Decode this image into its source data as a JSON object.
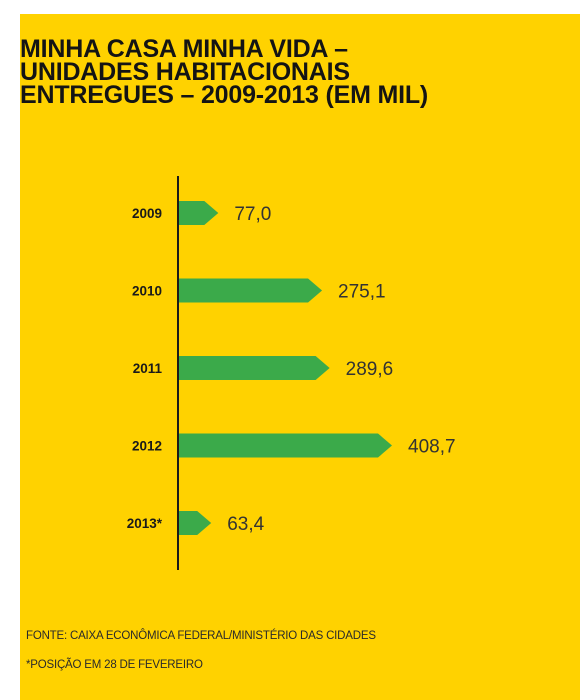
{
  "title_lines": [
    "MINHA CASA MINHA VIDA –",
    "UNIDADES HABITACIONAIS",
    "ENTREGUES – 2009-2013 (EM MIL)"
  ],
  "source": "FONTE: CAIXA ECONÔMICA FEDERAL/MINISTÉRIO DAS CIDADES",
  "footnote": "*POSIÇÃO EM 28 DE FEVEREIRO",
  "colors": {
    "background": "#FFD200",
    "bar": "#3BAA4A",
    "text": "#1a1a1a"
  },
  "chart_data": {
    "type": "bar",
    "orientation": "horizontal",
    "title": "MINHA CASA MINHA VIDA – UNIDADES HABITACIONAIS ENTREGUES – 2009-2013 (EM MIL)",
    "categories": [
      "2009",
      "2010",
      "2011",
      "2012",
      "2013*"
    ],
    "values": [
      77.0,
      275.1,
      289.6,
      408.7,
      63.4
    ],
    "value_labels": [
      "77,0",
      "275,1",
      "289,6",
      "408,7",
      "63,4"
    ],
    "xlabel": "",
    "ylabel": "",
    "grid": false,
    "legend": "none"
  }
}
